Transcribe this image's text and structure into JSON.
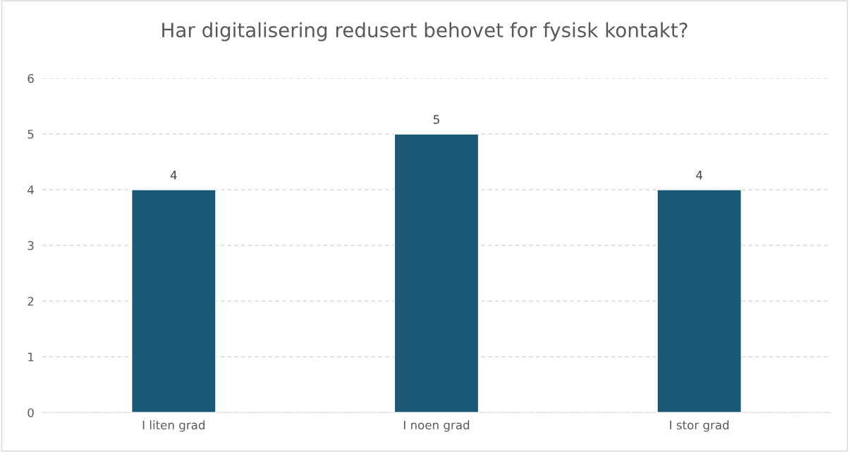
{
  "chart_data": {
    "type": "bar",
    "title": "Har digitalisering redusert behovet for fysisk kontakt?",
    "categories": [
      "I liten grad",
      "I noen grad",
      "I stor grad"
    ],
    "values": [
      4,
      5,
      4
    ],
    "color": "#1a5876",
    "ylim": [
      0,
      6
    ],
    "yticks": [
      0,
      1,
      2,
      3,
      4,
      5,
      6
    ],
    "grid": "y",
    "data_labels": true
  }
}
